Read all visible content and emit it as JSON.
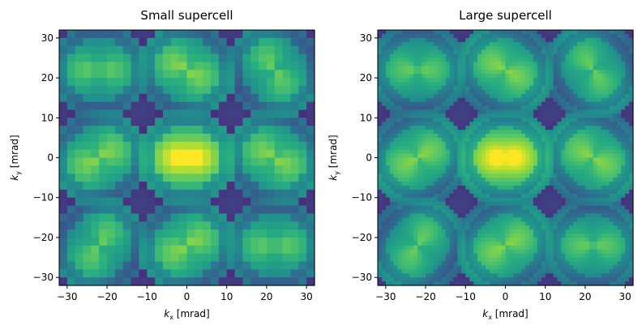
{
  "chart_data": [
    {
      "type": "heatmap",
      "title": "Small supercell",
      "xlabel": "k_x [mrad]",
      "ylabel": "k_y [mrad]",
      "xlim": [
        -32,
        32
      ],
      "ylim": [
        -32,
        32
      ],
      "xticks": [
        -30,
        -20,
        -10,
        0,
        10,
        20,
        30
      ],
      "yticks": [
        -30,
        -20,
        -10,
        0,
        10,
        20,
        30
      ],
      "xtick_labels": [
        "−30",
        "−20",
        "−10",
        "0",
        "10",
        "20",
        "30"
      ],
      "ytick_labels": [
        "−30",
        "−20",
        "−10",
        "0",
        "10",
        "20",
        "30"
      ],
      "grid": false,
      "colormap": "viridis",
      "pixel_step_mrad": 2.0,
      "description_of_pattern": "coarse diffraction disks, bright center"
    },
    {
      "type": "heatmap",
      "title": "Large supercell",
      "xlabel": "k_x [mrad]",
      "ylabel": "k_y [mrad]",
      "xlim": [
        -32,
        32
      ],
      "ylim": [
        -32,
        32
      ],
      "xticks": [
        -30,
        -20,
        -10,
        0,
        10,
        20,
        30
      ],
      "yticks": [
        -30,
        -20,
        -10,
        0,
        10,
        20,
        30
      ],
      "xtick_labels": [
        "−30",
        "−20",
        "−10",
        "0",
        "10",
        "20",
        "30"
      ],
      "ytick_labels": [
        "−30",
        "−20",
        "−10",
        "0",
        "10",
        "20",
        "30"
      ],
      "grid": false,
      "colormap": "viridis",
      "pixel_step_mrad": 1.0,
      "description_of_pattern": "fine diffraction disks, bright center"
    }
  ],
  "palette": {
    "viridis_dark": "#440154",
    "viridis_mid": "#21918c",
    "viridis_bright": "#fde725"
  }
}
